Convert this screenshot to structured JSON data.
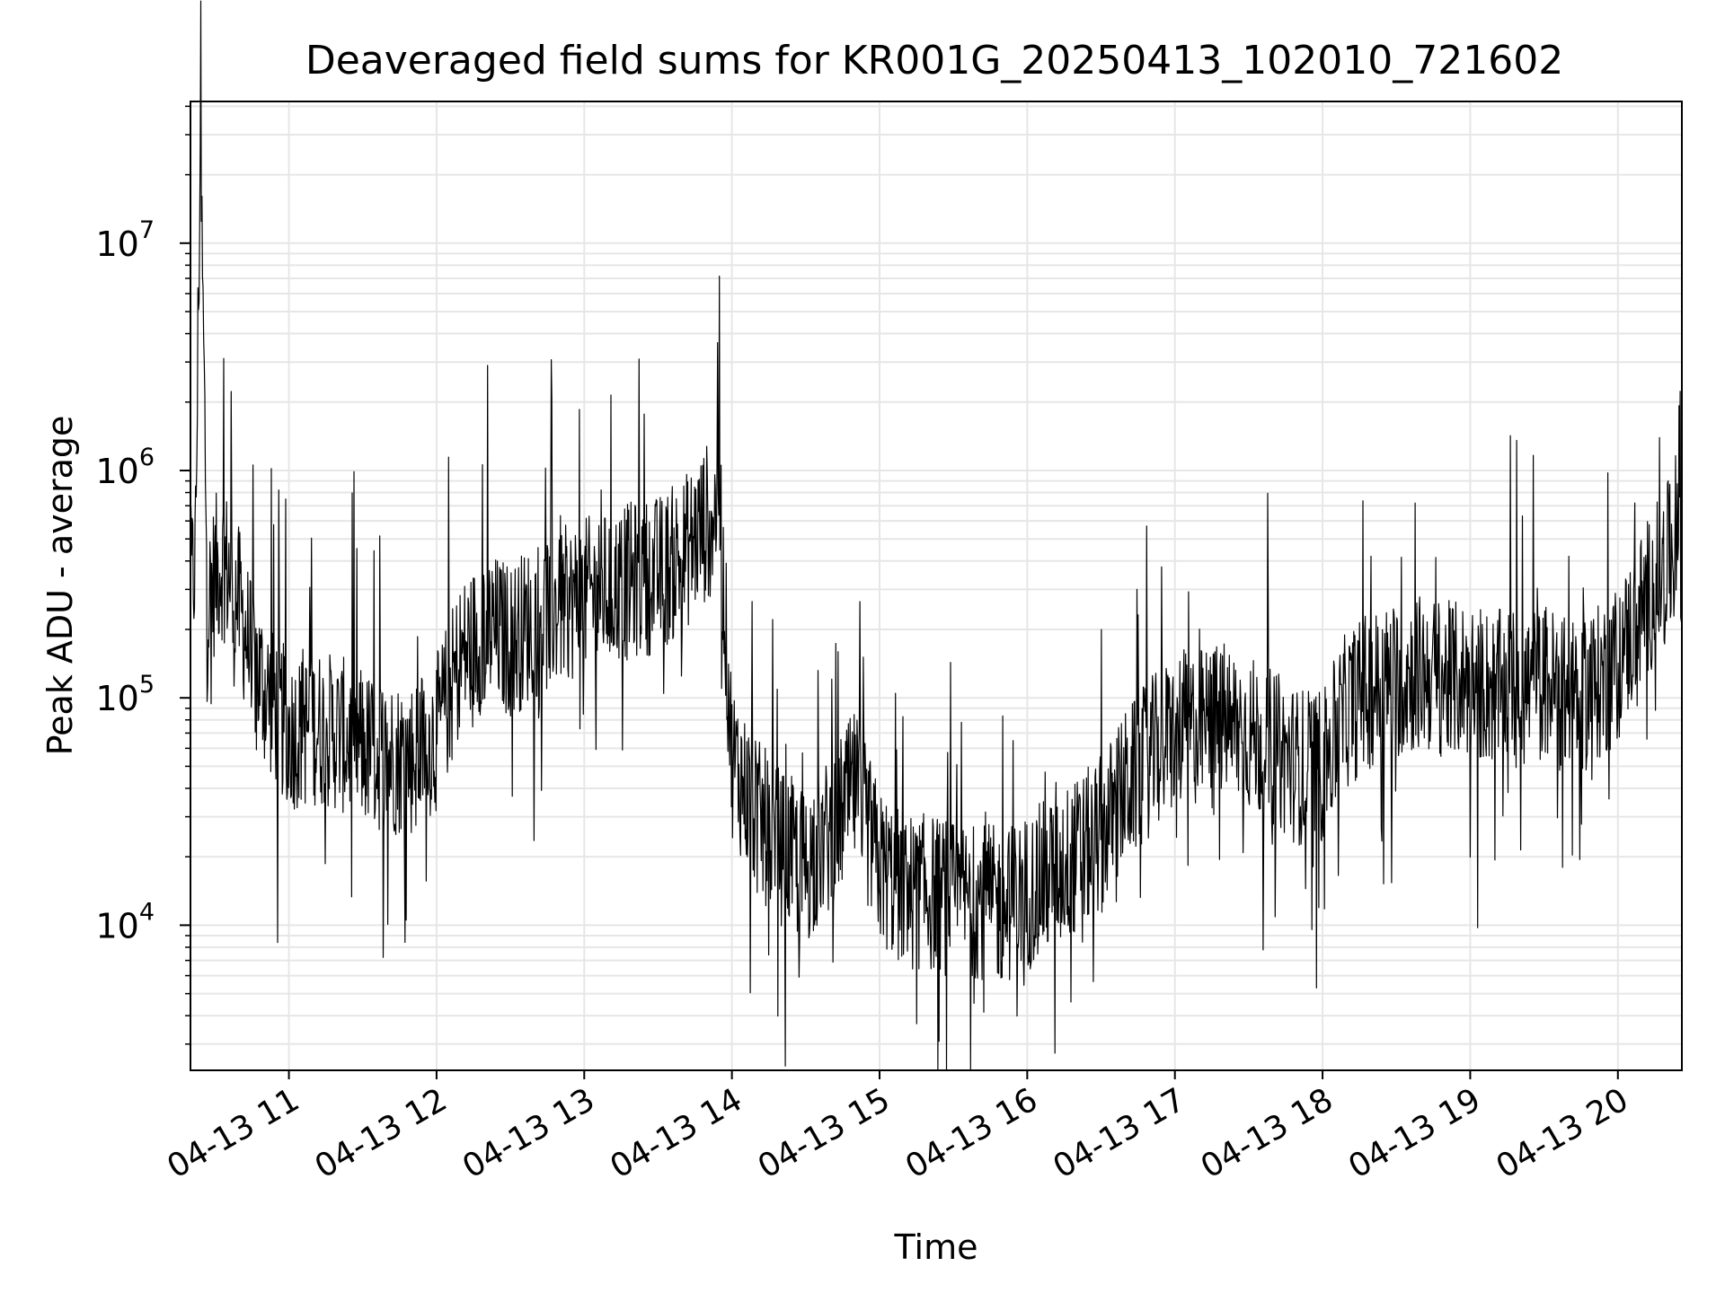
{
  "chart_data": {
    "type": "line",
    "title": "Deaveraged field sums for KR001G_20250413_102010_721602",
    "xlabel": "Time",
    "ylabel": "Peak ADU - average",
    "yscale": "log",
    "ylim": [
      2300,
      42000000
    ],
    "xlim": [
      "04-13 10:20",
      "04-13 20:26"
    ],
    "grid": true,
    "line_color": "#000000",
    "grid_color": "#e6e6e6",
    "x_ticks": [
      {
        "t": "04-13 11:00",
        "label": "04-13 11"
      },
      {
        "t": "04-13 12:00",
        "label": "04-13 12"
      },
      {
        "t": "04-13 13:00",
        "label": "04-13 13"
      },
      {
        "t": "04-13 14:00",
        "label": "04-13 14"
      },
      {
        "t": "04-13 15:00",
        "label": "04-13 15"
      },
      {
        "t": "04-13 16:00",
        "label": "04-13 16"
      },
      {
        "t": "04-13 17:00",
        "label": "04-13 17"
      },
      {
        "t": "04-13 18:00",
        "label": "04-13 18"
      },
      {
        "t": "04-13 19:00",
        "label": "04-13 19"
      },
      {
        "t": "04-13 20:00",
        "label": "04-13 20"
      }
    ],
    "y_ticks": [
      {
        "value": 10000,
        "base": "10",
        "exp": "4"
      },
      {
        "value": 100000,
        "base": "10",
        "exp": "5"
      },
      {
        "value": 1000000,
        "base": "10",
        "exp": "6"
      },
      {
        "value": 10000000,
        "base": "10",
        "exp": "7"
      }
    ],
    "series": [
      {
        "x": [
          "04-13 10:20",
          "04-13 10:22",
          "04-13 10:24",
          "04-13 10:27",
          "04-13 10:30",
          "04-13 10:33",
          "04-13 10:36",
          "04-13 10:40",
          "04-13 10:45",
          "04-13 10:50",
          "04-13 10:55",
          "04-13 11:00",
          "04-13 11:10",
          "04-13 11:20",
          "04-13 11:30",
          "04-13 11:40",
          "04-13 11:50",
          "04-13 12:00",
          "04-13 12:10",
          "04-13 12:20",
          "04-13 12:30",
          "04-13 12:40",
          "04-13 12:50",
          "04-13 13:00",
          "04-13 13:10",
          "04-13 13:20",
          "04-13 13:30",
          "04-13 13:40",
          "04-13 13:50",
          "04-13 13:55",
          "04-13 14:00",
          "04-13 14:10",
          "04-13 14:20",
          "04-13 14:30",
          "04-13 14:40",
          "04-13 14:50",
          "04-13 15:00",
          "04-13 15:10",
          "04-13 15:20",
          "04-13 15:30",
          "04-13 15:40",
          "04-13 15:50",
          "04-13 16:00",
          "04-13 16:10",
          "04-13 16:20",
          "04-13 16:30",
          "04-13 16:40",
          "04-13 16:50",
          "04-13 17:00",
          "04-13 17:10",
          "04-13 17:20",
          "04-13 17:30",
          "04-13 17:40",
          "04-13 17:50",
          "04-13 18:00",
          "04-13 18:10",
          "04-13 18:20",
          "04-13 18:30",
          "04-13 18:40",
          "04-13 18:50",
          "04-13 19:00",
          "04-13 19:10",
          "04-13 19:20",
          "04-13 19:30",
          "04-13 19:40",
          "04-13 19:50",
          "04-13 20:00",
          "04-13 20:10",
          "04-13 20:20",
          "04-13 20:26"
        ],
        "y": [
          300000,
          400000,
          27000000,
          250000,
          350000,
          400000,
          350000,
          250000,
          150000,
          110000,
          90000,
          70000,
          75000,
          70000,
          60000,
          55000,
          55000,
          70000,
          150000,
          200000,
          180000,
          220000,
          250000,
          280000,
          300000,
          330000,
          350000,
          420000,
          600000,
          700000,
          55000,
          30000,
          22000,
          18000,
          25000,
          40000,
          18000,
          14000,
          14000,
          13000,
          13000,
          12000,
          14000,
          17000,
          20000,
          25000,
          40000,
          55000,
          70000,
          75000,
          80000,
          70000,
          60000,
          50000,
          50000,
          90000,
          110000,
          120000,
          130000,
          120000,
          120000,
          110000,
          110000,
          120000,
          100000,
          110000,
          140000,
          250000,
          400000,
          450000
        ]
      }
    ]
  }
}
